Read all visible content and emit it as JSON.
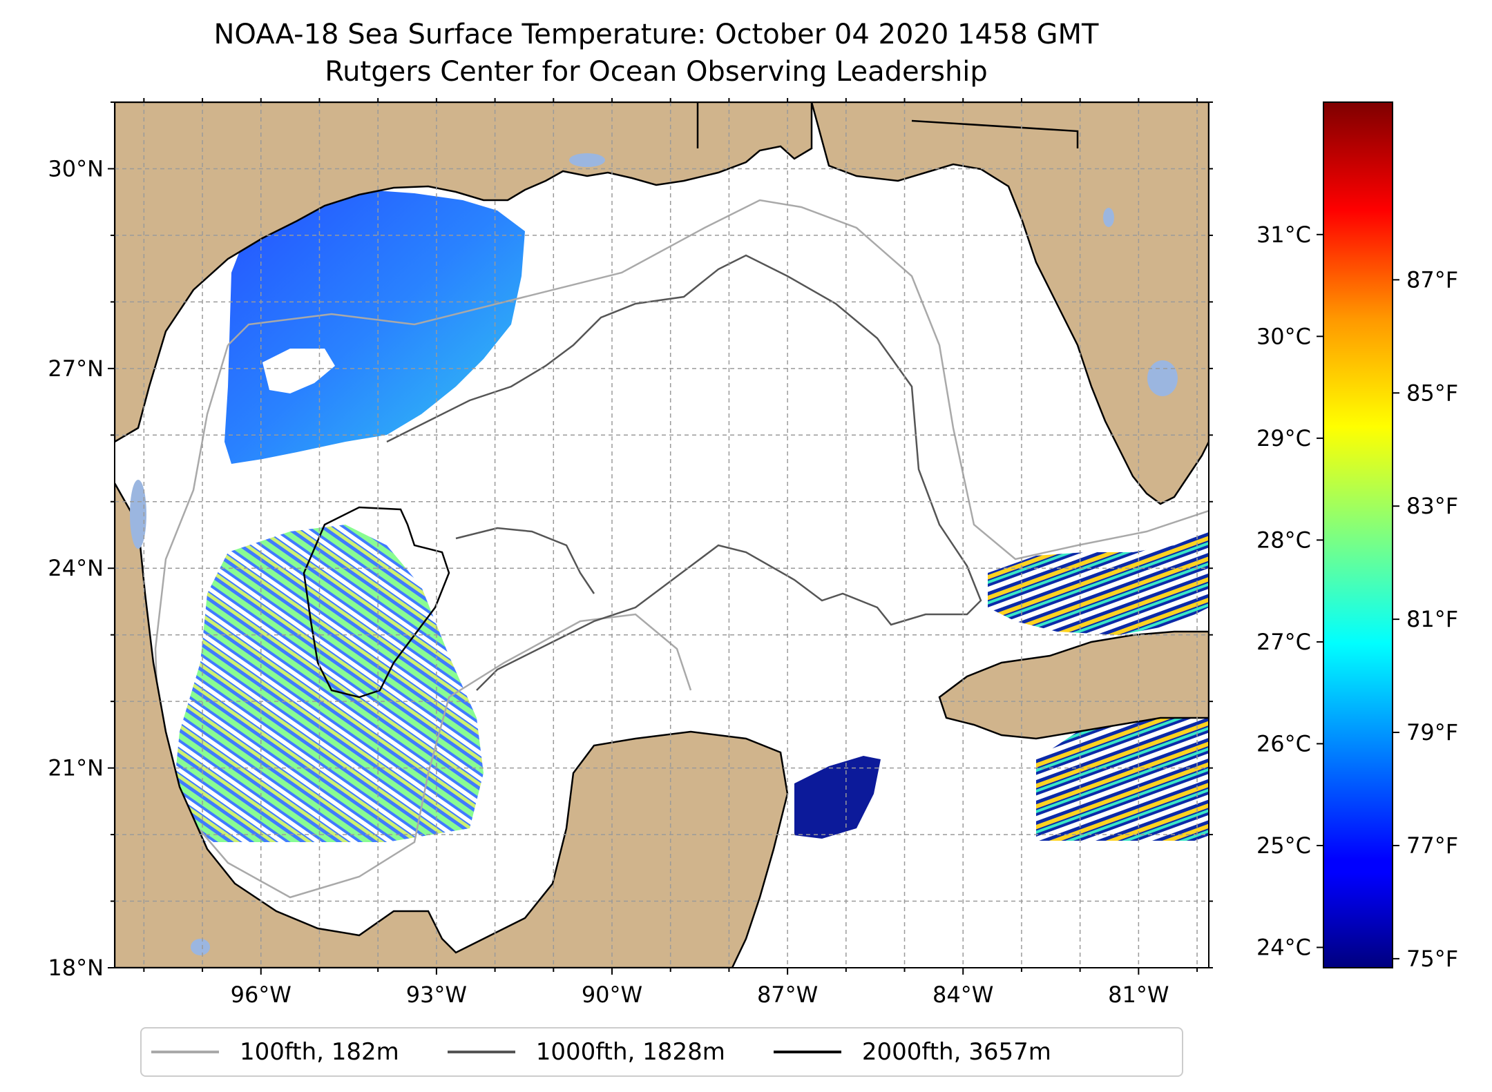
{
  "title": "NOAA-18 Sea Surface Temperature: October 04 2020 1458 GMT",
  "subtitle": "Rutgers Center for Ocean Observing Leadership",
  "map": {
    "lon_range": [
      -98.5,
      -79.8
    ],
    "lat_range": [
      18,
      31
    ],
    "lat_ticks": [
      {
        "value": 18,
        "label": "18°N"
      },
      {
        "value": 21,
        "label": "21°N"
      },
      {
        "value": 24,
        "label": "24°N"
      },
      {
        "value": 27,
        "label": "27°N"
      },
      {
        "value": 30,
        "label": "30°N"
      }
    ],
    "lon_ticks": [
      {
        "value": -96,
        "label": "96°W"
      },
      {
        "value": -93,
        "label": "93°W"
      },
      {
        "value": -90,
        "label": "90°W"
      },
      {
        "value": -87,
        "label": "87°W"
      },
      {
        "value": -84,
        "label": "84°W"
      },
      {
        "value": -81,
        "label": "81°W"
      }
    ],
    "gridlines": true,
    "colors": {
      "land": "#d0b48c",
      "water_bodies": "#9bb6e0",
      "ocean_nodata": "#ffffff"
    }
  },
  "colorbar": {
    "colormap": "jet",
    "range_c": [
      23.8,
      32.3
    ],
    "celsius_ticks": [
      {
        "value": 24,
        "label": "24°C"
      },
      {
        "value": 25,
        "label": "25°C"
      },
      {
        "value": 26,
        "label": "26°C"
      },
      {
        "value": 27,
        "label": "27°C"
      },
      {
        "value": 28,
        "label": "28°C"
      },
      {
        "value": 29,
        "label": "29°C"
      },
      {
        "value": 30,
        "label": "30°C"
      },
      {
        "value": 31,
        "label": "31°C"
      }
    ],
    "fahrenheit_ticks": [
      {
        "value": 75,
        "label": "75°F"
      },
      {
        "value": 77,
        "label": "77°F"
      },
      {
        "value": 79,
        "label": "79°F"
      },
      {
        "value": 81,
        "label": "81°F"
      },
      {
        "value": 83,
        "label": "83°F"
      },
      {
        "value": 85,
        "label": "85°F"
      },
      {
        "value": 87,
        "label": "87°F"
      }
    ]
  },
  "legend": {
    "items": [
      {
        "label": "100fth, 182m",
        "color": "#a9a9a9"
      },
      {
        "label": "1000fth, 1828m",
        "color": "#555555"
      },
      {
        "label": "2000fth, 3657m",
        "color": "#000000"
      }
    ]
  }
}
